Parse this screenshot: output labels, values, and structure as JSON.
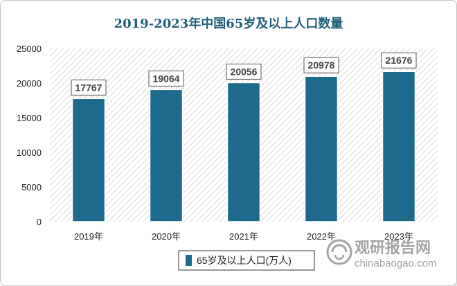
{
  "chart_data": {
    "type": "bar",
    "title": "2019-2023年中国65岁及以上人口数量",
    "categories": [
      "2019年",
      "2020年",
      "2021年",
      "2022年",
      "2023年"
    ],
    "series": [
      {
        "name": "65岁及以上人口(万人)",
        "values": [
          17767,
          19064,
          20056,
          20978,
          21676
        ]
      }
    ],
    "ylim": [
      0,
      25000
    ],
    "yticks": [
      0,
      5000,
      10000,
      15000,
      20000,
      25000
    ],
    "grid": false,
    "legend_position": "bottom",
    "bar_color": "#1d6a8c"
  },
  "watermark": {
    "brand_cn": "观研报告网",
    "brand_url": "chinabaogao.com",
    "logo_icon": "circular-swirl-logo-icon"
  }
}
